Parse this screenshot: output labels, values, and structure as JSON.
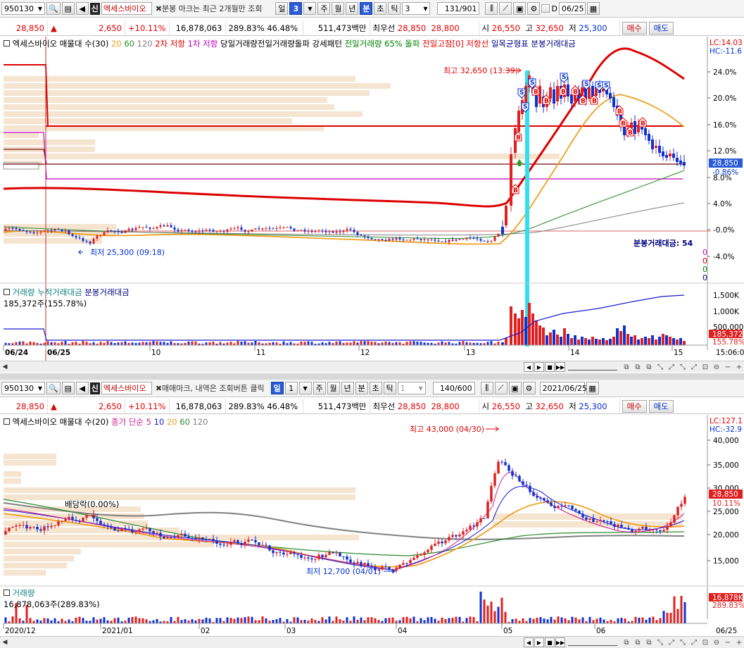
{
  "panel1": {
    "toolbar": {
      "code": "950130",
      "sin_badge": "신",
      "stock_name": "엑세스바이오",
      "note": "분봉 마크는 최근 2개월만 조회",
      "period_day": "일",
      "period_value": "3",
      "tabs": [
        "주",
        "월",
        "년",
        "분",
        "초",
        "틱"
      ],
      "active_tab": "분",
      "interval": "3",
      "count": "131/901",
      "date_checkbox_label": "D",
      "date": "06/25"
    },
    "pricebar": {
      "price": "28,850",
      "change_arrow": "▲",
      "change": "2,650",
      "change_pct": "+10.11%",
      "volume": "16,878,063",
      "volume_ratio": "289.83%",
      "turnover_pct": "46.48%",
      "amount": "511,473백만",
      "best_label": "최우선",
      "best_ask": "28,850",
      "best_bid": "28,800",
      "open_label": "시",
      "open": "26,550",
      "high_label": "고",
      "high": "32,650",
      "low_label": "저",
      "low": "25,300",
      "buy_label": "매수",
      "sell_label": "매도"
    },
    "legend": {
      "title": "엑세스바이오 매물대 수(30)",
      "ma": [
        "20",
        "60",
        "120"
      ],
      "items": [
        {
          "text": "2차 저항",
          "color": "#e00000"
        },
        {
          "text": "1차 저항",
          "color": "#c000c0"
        },
        {
          "text": "당일거래량전일거래량돌파 강세패턴",
          "color": "#000000"
        },
        {
          "text": "전일거래량 65% 돌파",
          "color": "#008000"
        },
        {
          "text": "전일고점[0]",
          "color": "#e00000"
        },
        {
          "text": "저항선",
          "color": "#e00000"
        },
        {
          "text": "일목균형표 분봉거래대금",
          "color": "#000080"
        }
      ]
    },
    "right_axis": {
      "top_labels": [
        "LC:14.03",
        "HC:-11.6"
      ],
      "ticks": [
        "24.0%",
        "20.0%",
        "16.0%",
        "12.0%",
        "8.0%",
        "4.0%",
        "-0.0%",
        "-4.0%"
      ],
      "price_tag": "28,850",
      "price_tag_sub": "-0.86%"
    },
    "annotations": {
      "high": "최고 32,650 (13:39)",
      "low": "최저 25,300 (09:18)",
      "amount_title": "분봉거래대금: 54",
      "amount_rows": [
        "0",
        "0",
        "0",
        "0"
      ]
    },
    "volume_legend": {
      "items": [
        "거래량",
        "누적거래대금",
        "분봉거래대금"
      ],
      "value": "185,372주(155.78%)",
      "axis": [
        "1,500K",
        "1,000K",
        "500,000"
      ],
      "tag1": "185,372",
      "tag2": "155.78%"
    },
    "x_axis": [
      "06/24",
      "06/25",
      "10",
      "11",
      "12",
      "13",
      "14",
      "15",
      "15:06:00"
    ]
  },
  "panel2": {
    "toolbar": {
      "code": "950130",
      "sin_badge": "신",
      "stock_name": "엑세스바이오",
      "note": "매매마크, 내역은 조회버튼 클릭",
      "period_day": "일",
      "period_value": "1",
      "tabs": [
        "주",
        "월",
        "년",
        "분",
        "초",
        "틱"
      ],
      "active_tab": "일",
      "interval": "1",
      "count": "140/600",
      "date": "2021/06/25"
    },
    "pricebar": {
      "price": "28,850",
      "change_arrow": "▲",
      "change": "2,650",
      "change_pct": "+10.11%",
      "volume": "16,878,063",
      "volume_ratio": "289.83%",
      "turnover_pct": "46.48%",
      "amount": "511,473백만",
      "best_label": "최우선",
      "best_ask": "28,850",
      "best_bid": "28,800",
      "open_label": "시",
      "open": "26,550",
      "high_label": "고",
      "high": "32,650",
      "low_label": "저",
      "low": "25,300",
      "buy_label": "매수",
      "sell_label": "매도"
    },
    "legend": {
      "title": "엑세스바이오 매물대 수(20)",
      "sub": "종가 단순",
      "ma": [
        "5",
        "10",
        "20",
        "60",
        "120"
      ]
    },
    "right_axis": {
      "top_labels": [
        "LC:127.1",
        "HC:-32.9"
      ],
      "ticks": [
        "40,000",
        "35,000",
        "30,000",
        "25,000",
        "20,000",
        "15,000"
      ],
      "price_tag": "28,850",
      "price_tag_sub": "10.11%"
    },
    "annotations": {
      "high": "최고 43,000 (04/30)",
      "low": "최저 12,700 (04/01)",
      "dividend": "배당락(0.00%)"
    },
    "volume_legend": {
      "title": "거래량",
      "value": "16,878,063주(289.83%)",
      "tag1": "16,878K",
      "tag2": "289.83%"
    },
    "x_axis": [
      "2020/12",
      "2021/01",
      "02",
      "03",
      "04",
      "05",
      "06",
      "06/25"
    ]
  },
  "colors": {
    "up": "#e02020",
    "down": "#1030d0",
    "highlight": "#33dfee",
    "volume_bar": "#f2dcc0"
  }
}
